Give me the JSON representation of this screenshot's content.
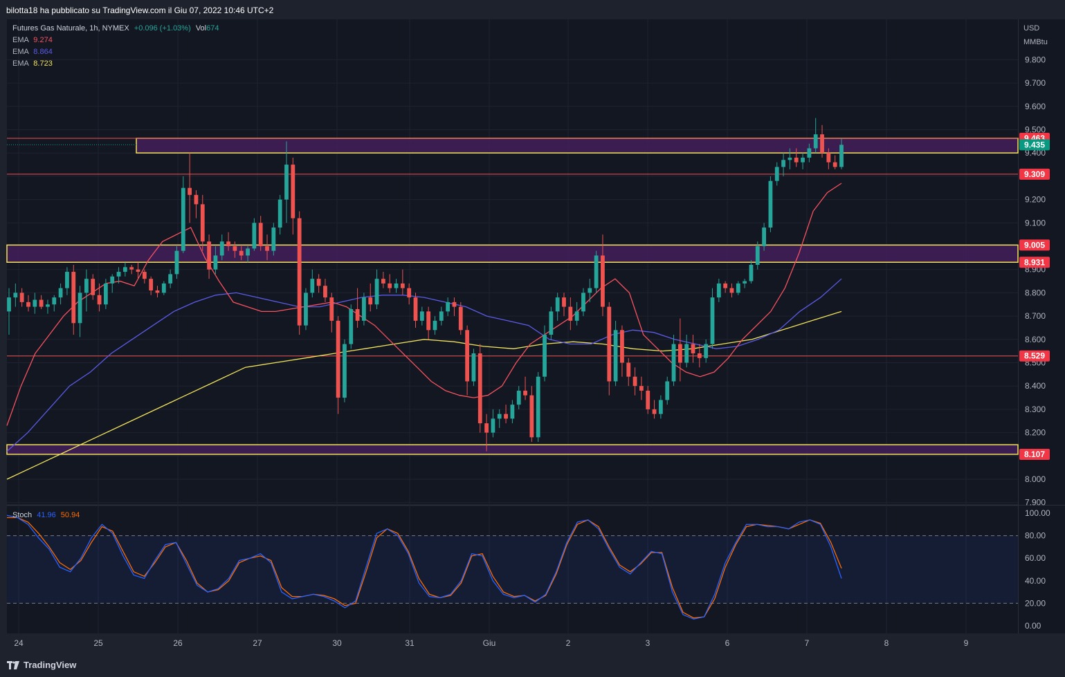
{
  "header": {
    "publisher_line": "bilotta18 ha pubblicato su TradingView.com il Giu 07, 2022 10:46 UTC+2"
  },
  "legend": {
    "symbol_title": "Futures Gas Naturale, 1h, NYMEX",
    "change": "+0.096 (+1.03%)",
    "volume_label": "Vol",
    "volume_value": "674",
    "ema_rows": [
      {
        "label": "EMA",
        "value": "9.274",
        "color": "#f7525f"
      },
      {
        "label": "EMA",
        "value": "8.864",
        "color": "#5b5be6"
      },
      {
        "label": "EMA",
        "value": "8.723",
        "color": "#f1e35b"
      }
    ]
  },
  "stoch_legend": {
    "label": "Stoch",
    "k_value": "41.96",
    "d_value": "50.94",
    "k_color": "#2962ff",
    "d_color": "#ff6d00"
  },
  "footer": {
    "brand": "TradingView"
  },
  "colors": {
    "up": "#26a69a",
    "down": "#ef5350",
    "zone_fill": "#4a2063",
    "zone_border": "#f5e25d",
    "level_line": "#ef5350",
    "price_badge": "#f23645",
    "last_price_badge": "#089981",
    "background": "#131722"
  },
  "chart_data": [
    {
      "type": "candlestick",
      "title": "Futures Gas Naturale, 1h, NYMEX",
      "currency": "USD",
      "unit": "MMBtu",
      "x_labels": [
        "24",
        "25",
        "26",
        "27",
        "30",
        "31",
        "Giu",
        "2",
        "3",
        "6",
        "7",
        "8",
        "9"
      ],
      "y_ticks": [
        "7.900",
        "8.000",
        "8.100",
        "8.200",
        "8.300",
        "8.400",
        "8.500",
        "8.600",
        "8.700",
        "8.800",
        "8.900",
        "9.000",
        "9.100",
        "9.200",
        "9.300",
        "9.400",
        "9.500",
        "9.600",
        "9.700",
        "9.800"
      ],
      "ylim": [
        7.9,
        9.9
      ],
      "grid": true,
      "price_level_labels": [
        "9.463",
        "9.309",
        "9.005",
        "8.931",
        "8.529",
        "8.107"
      ],
      "last_price_label": "9.435",
      "zones": [
        {
          "top": 9.463,
          "bottom": 9.4
        },
        {
          "top": 9.005,
          "bottom": 8.931
        },
        {
          "top": 8.148,
          "bottom": 8.107
        }
      ],
      "levels": [
        9.463,
        9.309,
        8.529
      ],
      "candles_ohlc": [
        [
          8.72,
          8.82,
          8.62,
          8.78
        ],
        [
          8.78,
          8.84,
          8.74,
          8.8
        ],
        [
          8.8,
          8.82,
          8.74,
          8.76
        ],
        [
          8.76,
          8.79,
          8.72,
          8.74
        ],
        [
          8.74,
          8.8,
          8.71,
          8.77
        ],
        [
          8.77,
          8.79,
          8.73,
          8.74
        ],
        [
          8.74,
          8.77,
          8.71,
          8.75
        ],
        [
          8.75,
          8.79,
          8.72,
          8.78
        ],
        [
          8.78,
          8.84,
          8.75,
          8.82
        ],
        [
          8.82,
          8.91,
          8.79,
          8.89
        ],
        [
          8.89,
          8.92,
          8.62,
          8.67
        ],
        [
          8.67,
          8.83,
          8.61,
          8.8
        ],
        [
          8.8,
          8.9,
          8.72,
          8.86
        ],
        [
          8.86,
          8.88,
          8.77,
          8.79
        ],
        [
          8.79,
          8.84,
          8.72,
          8.75
        ],
        [
          8.75,
          8.86,
          8.73,
          8.84
        ],
        [
          8.84,
          8.88,
          8.8,
          8.87
        ],
        [
          8.87,
          8.91,
          8.84,
          8.89
        ],
        [
          8.89,
          8.93,
          8.87,
          8.91
        ],
        [
          8.91,
          8.92,
          8.88,
          8.9
        ],
        [
          8.9,
          8.93,
          8.86,
          8.89
        ],
        [
          8.89,
          8.9,
          8.84,
          8.86
        ],
        [
          8.86,
          8.87,
          8.79,
          8.81
        ],
        [
          8.81,
          8.83,
          8.78,
          8.8
        ],
        [
          8.8,
          8.85,
          8.79,
          8.84
        ],
        [
          8.84,
          8.9,
          8.82,
          8.88
        ],
        [
          8.88,
          9.0,
          8.86,
          8.98
        ],
        [
          8.98,
          9.3,
          8.97,
          9.25
        ],
        [
          9.25,
          9.4,
          9.1,
          9.22
        ],
        [
          9.22,
          9.24,
          9.12,
          9.18
        ],
        [
          9.18,
          9.22,
          8.98,
          9.02
        ],
        [
          9.02,
          9.05,
          8.86,
          8.9
        ],
        [
          8.9,
          9.0,
          8.88,
          8.96
        ],
        [
          8.96,
          9.05,
          8.94,
          9.02
        ],
        [
          9.02,
          9.06,
          8.98,
          9.0
        ],
        [
          9.0,
          9.02,
          8.95,
          8.98
        ],
        [
          8.98,
          9.0,
          8.94,
          8.96
        ],
        [
          8.96,
          9.0,
          8.93,
          8.99
        ],
        [
          8.99,
          9.12,
          8.98,
          9.1
        ],
        [
          9.1,
          9.13,
          8.98,
          9.0
        ],
        [
          9.0,
          9.05,
          8.94,
          8.98
        ],
        [
          8.98,
          9.1,
          8.96,
          9.08
        ],
        [
          9.08,
          9.22,
          9.05,
          9.2
        ],
        [
          9.2,
          9.45,
          9.1,
          9.35
        ],
        [
          9.35,
          9.38,
          9.05,
          9.12
        ],
        [
          9.12,
          9.15,
          8.62,
          8.66
        ],
        [
          8.66,
          8.82,
          8.64,
          8.8
        ],
        [
          8.8,
          8.9,
          8.78,
          8.86
        ],
        [
          8.86,
          8.88,
          8.8,
          8.83
        ],
        [
          8.83,
          8.86,
          8.76,
          8.78
        ],
        [
          8.78,
          8.8,
          8.63,
          8.68
        ],
        [
          8.68,
          8.7,
          8.28,
          8.35
        ],
        [
          8.35,
          8.6,
          8.33,
          8.58
        ],
        [
          8.58,
          8.75,
          8.56,
          8.73
        ],
        [
          8.73,
          8.82,
          8.65,
          8.68
        ],
        [
          8.68,
          8.8,
          8.66,
          8.78
        ],
        [
          8.78,
          8.84,
          8.72,
          8.75
        ],
        [
          8.75,
          8.9,
          8.73,
          8.86
        ],
        [
          8.86,
          8.89,
          8.82,
          8.84
        ],
        [
          8.84,
          8.88,
          8.8,
          8.82
        ],
        [
          8.82,
          8.86,
          8.8,
          8.84
        ],
        [
          8.84,
          8.9,
          8.79,
          8.82
        ],
        [
          8.82,
          8.84,
          8.75,
          8.78
        ],
        [
          8.78,
          8.8,
          8.65,
          8.68
        ],
        [
          8.68,
          8.74,
          8.66,
          8.72
        ],
        [
          8.72,
          8.74,
          8.6,
          8.64
        ],
        [
          8.64,
          8.7,
          8.62,
          8.68
        ],
        [
          8.68,
          8.74,
          8.66,
          8.72
        ],
        [
          8.72,
          8.78,
          8.7,
          8.76
        ],
        [
          8.76,
          8.78,
          8.7,
          8.74
        ],
        [
          8.74,
          8.76,
          8.62,
          8.64
        ],
        [
          8.64,
          8.66,
          8.36,
          8.42
        ],
        [
          8.42,
          8.56,
          8.4,
          8.54
        ],
        [
          8.54,
          8.58,
          8.2,
          8.24
        ],
        [
          8.24,
          8.28,
          8.12,
          8.2
        ],
        [
          8.2,
          8.3,
          8.18,
          8.26
        ],
        [
          8.26,
          8.3,
          8.22,
          8.28
        ],
        [
          8.28,
          8.32,
          8.24,
          8.26
        ],
        [
          8.26,
          8.34,
          8.24,
          8.32
        ],
        [
          8.32,
          8.4,
          8.3,
          8.38
        ],
        [
          8.38,
          8.44,
          8.34,
          8.36
        ],
        [
          8.36,
          8.4,
          8.16,
          8.18
        ],
        [
          8.18,
          8.46,
          8.16,
          8.44
        ],
        [
          8.44,
          8.66,
          8.42,
          8.62
        ],
        [
          8.62,
          8.74,
          8.6,
          8.72
        ],
        [
          8.72,
          8.8,
          8.68,
          8.78
        ],
        [
          8.78,
          8.8,
          8.7,
          8.74
        ],
        [
          8.74,
          8.78,
          8.64,
          8.68
        ],
        [
          8.68,
          8.76,
          8.66,
          8.72
        ],
        [
          8.72,
          8.82,
          8.7,
          8.8
        ],
        [
          8.8,
          8.86,
          8.76,
          8.82
        ],
        [
          8.82,
          8.98,
          8.8,
          8.96
        ],
        [
          8.96,
          9.05,
          8.7,
          8.74
        ],
        [
          8.74,
          8.76,
          8.36,
          8.42
        ],
        [
          8.42,
          8.68,
          8.4,
          8.64
        ],
        [
          8.64,
          8.66,
          8.44,
          8.5
        ],
        [
          8.5,
          8.52,
          8.4,
          8.44
        ],
        [
          8.44,
          8.48,
          8.36,
          8.4
        ],
        [
          8.4,
          8.44,
          8.34,
          8.38
        ],
        [
          8.38,
          8.4,
          8.28,
          8.3
        ],
        [
          8.3,
          8.34,
          8.26,
          8.28
        ],
        [
          8.28,
          8.36,
          8.26,
          8.34
        ],
        [
          8.34,
          8.44,
          8.32,
          8.42
        ],
        [
          8.42,
          8.62,
          8.4,
          8.58
        ],
        [
          8.58,
          8.69,
          8.42,
          8.5
        ],
        [
          8.5,
          8.62,
          8.48,
          8.58
        ],
        [
          8.58,
          8.62,
          8.5,
          8.54
        ],
        [
          8.54,
          8.58,
          8.48,
          8.52
        ],
        [
          8.52,
          8.6,
          8.5,
          8.58
        ],
        [
          8.58,
          8.82,
          8.56,
          8.78
        ],
        [
          8.78,
          8.86,
          8.76,
          8.84
        ],
        [
          8.84,
          8.85,
          8.8,
          8.82
        ],
        [
          8.82,
          8.84,
          8.78,
          8.8
        ],
        [
          8.8,
          8.85,
          8.79,
          8.84
        ],
        [
          8.84,
          8.86,
          8.82,
          8.85
        ],
        [
          8.85,
          8.94,
          8.84,
          8.92
        ],
        [
          8.92,
          9.02,
          8.9,
          9.0
        ],
        [
          9.0,
          9.1,
          8.98,
          9.08
        ],
        [
          9.08,
          9.3,
          9.06,
          9.28
        ],
        [
          9.28,
          9.36,
          9.26,
          9.34
        ],
        [
          9.34,
          9.4,
          9.3,
          9.37
        ],
        [
          9.37,
          9.42,
          9.33,
          9.38
        ],
        [
          9.38,
          9.42,
          9.34,
          9.36
        ],
        [
          9.36,
          9.4,
          9.33,
          9.38
        ],
        [
          9.38,
          9.44,
          9.36,
          9.42
        ],
        [
          9.42,
          9.55,
          9.4,
          9.48
        ],
        [
          9.48,
          9.52,
          9.38,
          9.4
        ],
        [
          9.4,
          9.42,
          9.33,
          9.36
        ],
        [
          9.36,
          9.39,
          9.33,
          9.34
        ],
        [
          9.34,
          9.46,
          9.33,
          9.435
        ]
      ],
      "ema_short": [
        8.23,
        8.4,
        8.54,
        8.62,
        8.7,
        8.76,
        8.8,
        8.84,
        8.85,
        8.83,
        8.94,
        9.02,
        9.05,
        9.08,
        8.95,
        8.85,
        8.76,
        8.74,
        8.72,
        8.72,
        8.73,
        8.74,
        8.75,
        8.76,
        8.74,
        8.7,
        8.66,
        8.6,
        8.54,
        8.48,
        8.42,
        8.38,
        8.36,
        8.35,
        8.36,
        8.4,
        8.5,
        8.58,
        8.62,
        8.66,
        8.7,
        8.76,
        8.82,
        8.86,
        8.8,
        8.62,
        8.56,
        8.5,
        8.46,
        8.44,
        8.46,
        8.52,
        8.6,
        8.66,
        8.72,
        8.82,
        8.97,
        9.15,
        9.23,
        9.27
      ],
      "ema_mid": [
        8.12,
        8.2,
        8.3,
        8.4,
        8.46,
        8.54,
        8.6,
        8.66,
        8.72,
        8.76,
        8.79,
        8.8,
        8.78,
        8.76,
        8.74,
        8.74,
        8.76,
        8.78,
        8.79,
        8.79,
        8.78,
        8.76,
        8.74,
        8.7,
        8.68,
        8.66,
        8.6,
        8.58,
        8.58,
        8.62,
        8.64,
        8.63,
        8.6,
        8.58,
        8.56,
        8.57,
        8.6,
        8.64,
        8.72,
        8.78,
        8.86
      ],
      "ema_long": [
        8.0,
        8.06,
        8.12,
        8.18,
        8.24,
        8.3,
        8.36,
        8.42,
        8.48,
        8.5,
        8.52,
        8.54,
        8.56,
        8.58,
        8.6,
        8.59,
        8.57,
        8.56,
        8.58,
        8.59,
        8.58,
        8.56,
        8.55,
        8.56,
        8.58,
        8.6,
        8.64,
        8.68,
        8.72
      ]
    },
    {
      "type": "line",
      "title": "Stoch",
      "y_ticks": [
        "0.00",
        "20.00",
        "40.00",
        "60.00",
        "80.00",
        "100.00"
      ],
      "ylim": [
        -6,
        108
      ],
      "band": [
        20,
        80
      ],
      "series": [
        {
          "name": "%K",
          "values": [
            98,
            96,
            90,
            78,
            68,
            52,
            48,
            60,
            78,
            90,
            82,
            62,
            45,
            42,
            58,
            72,
            74,
            55,
            36,
            30,
            33,
            42,
            58,
            60,
            64,
            56,
            30,
            24,
            26,
            28,
            26,
            22,
            16,
            22,
            52,
            82,
            86,
            80,
            64,
            38,
            26,
            25,
            28,
            40,
            64,
            62,
            40,
            28,
            25,
            27,
            21,
            28,
            48,
            74,
            92,
            94,
            86,
            68,
            52,
            46,
            56,
            66,
            64,
            30,
            10,
            6,
            8,
            28,
            56,
            74,
            90,
            90,
            88,
            88,
            86,
            92,
            94,
            90,
            70,
            42
          ]
        },
        {
          "name": "%D",
          "values": [
            96,
            96,
            92,
            82,
            70,
            56,
            50,
            58,
            74,
            88,
            84,
            66,
            48,
            44,
            56,
            70,
            74,
            58,
            38,
            30,
            32,
            40,
            56,
            60,
            62,
            58,
            34,
            26,
            26,
            28,
            27,
            24,
            18,
            20,
            48,
            78,
            86,
            82,
            66,
            42,
            28,
            25,
            27,
            38,
            62,
            64,
            44,
            30,
            26,
            27,
            22,
            27,
            46,
            72,
            90,
            94,
            88,
            70,
            54,
            48,
            55,
            65,
            65,
            34,
            12,
            7,
            8,
            24,
            52,
            72,
            88,
            90,
            89,
            88,
            86,
            90,
            94,
            91,
            74,
            51
          ]
        }
      ]
    }
  ]
}
